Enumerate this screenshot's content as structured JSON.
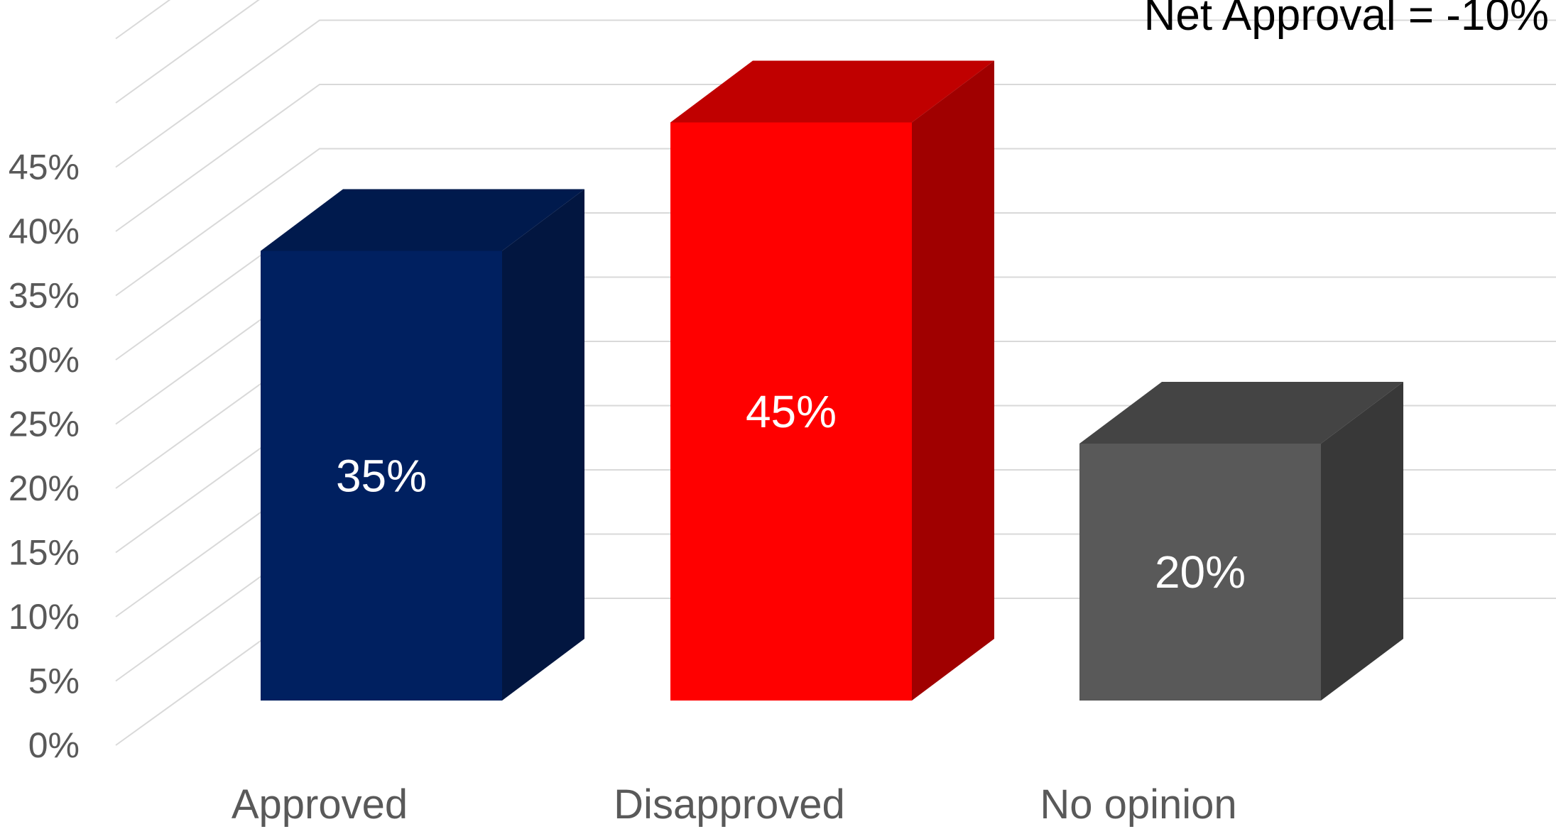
{
  "chart_data": {
    "type": "bar",
    "style": "3d-column",
    "title": "Net Approval = -10%",
    "categories": [
      "Approved",
      "Disapproved",
      "No opinion"
    ],
    "values": [
      35,
      45,
      20
    ],
    "data_labels": [
      "35%",
      "45%",
      "20%"
    ],
    "value_unit": "%",
    "colors": {
      "front": [
        "#002060",
        "#ff0000",
        "#595959"
      ],
      "top": [
        "#001a4d",
        "#c00000",
        "#444444"
      ],
      "side": [
        "#021640",
        "#a00000",
        "#383838"
      ],
      "grid": "#d9d9d9",
      "tick_text": "#595959",
      "label_text": "#ffffff"
    },
    "ylim": [
      0,
      45
    ],
    "y_ticks": [
      "0%",
      "5%",
      "10%",
      "15%",
      "20%",
      "25%",
      "30%",
      "35%",
      "40%",
      "45%"
    ],
    "xlabel": "",
    "ylabel": "",
    "grid": true,
    "legend": "none"
  }
}
